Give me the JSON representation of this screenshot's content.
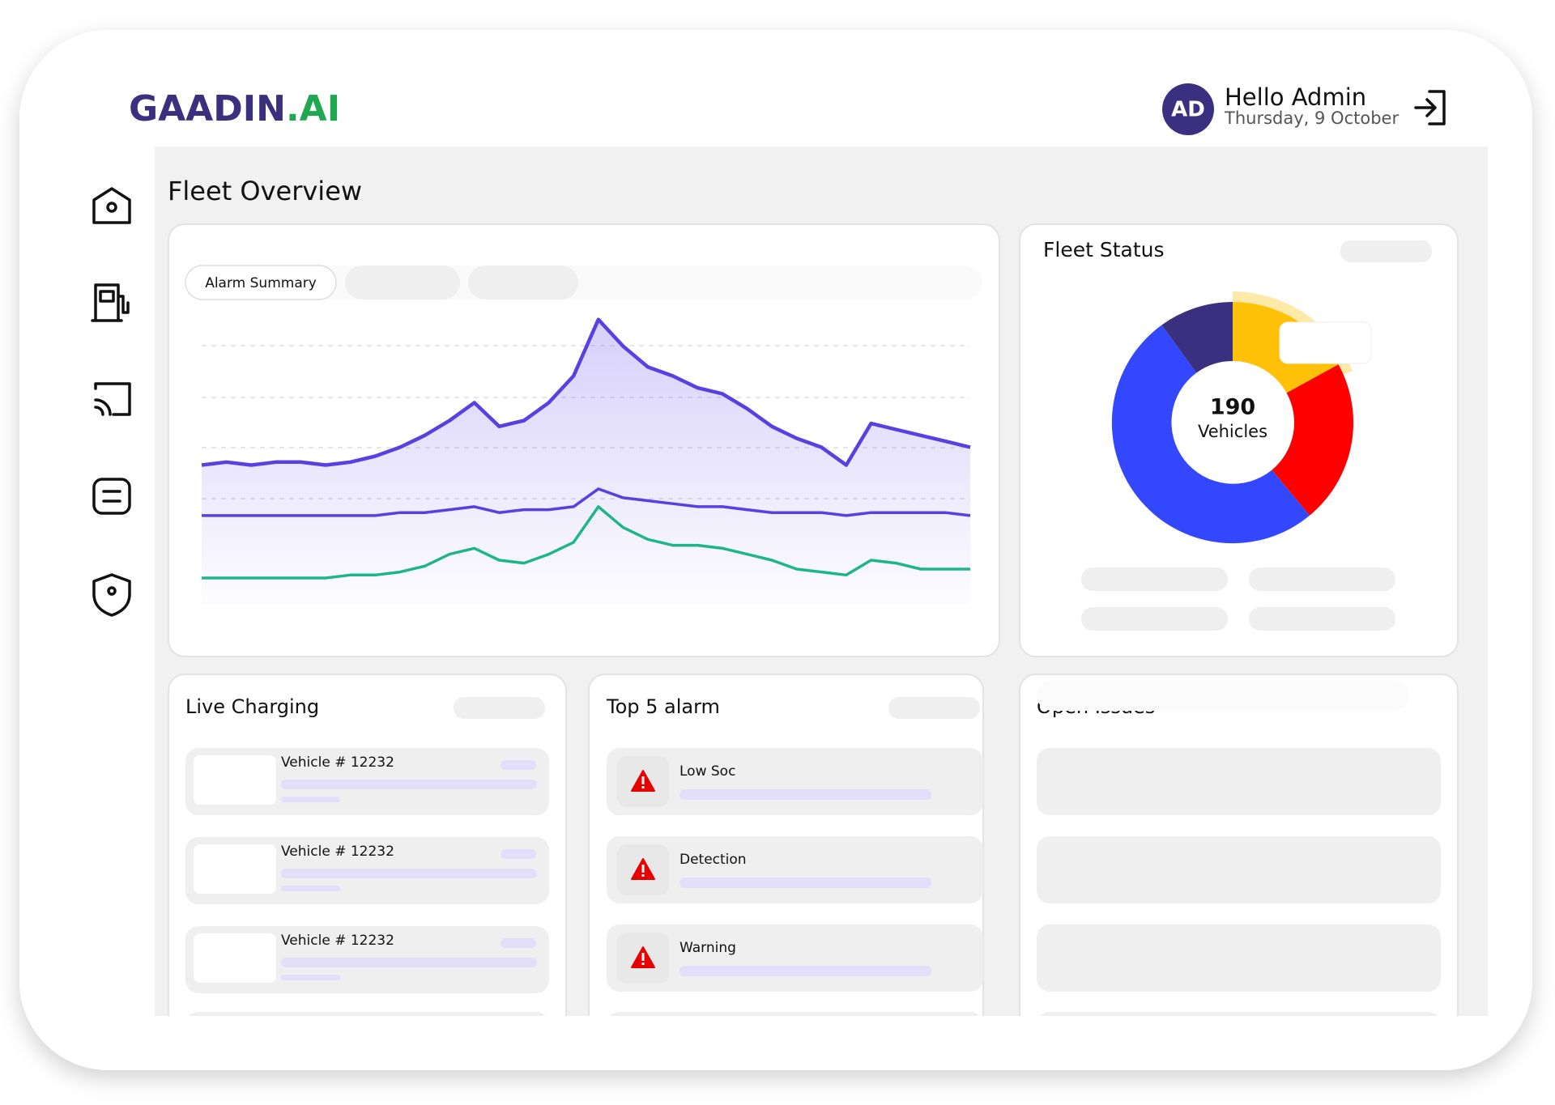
{
  "header": {
    "logo_main": "GAADIN",
    "logo_suffix": ".AI",
    "avatar": "AD",
    "greeting": "Hello Admin",
    "date": "Thursday, 9 October"
  },
  "page_title": "Fleet Overview",
  "alarm_summary": {
    "tab": "Alarm Summary"
  },
  "chart_data": [
    {
      "type": "line",
      "ylim": [
        0,
        100
      ],
      "series": [
        {
          "color": "#5b3fe0",
          "values": [
            47,
            48,
            47,
            48,
            48,
            47,
            48,
            50,
            53,
            57,
            62,
            68,
            60,
            62,
            68,
            77,
            96,
            87,
            80,
            77,
            73,
            71,
            66,
            60,
            56,
            53,
            47,
            61,
            59,
            57,
            55,
            53
          ]
        },
        {
          "color": "#5b3fe0",
          "values": [
            30,
            30,
            30,
            30,
            30,
            30,
            30,
            30,
            31,
            31,
            32,
            33,
            31,
            32,
            32,
            33,
            39,
            36,
            35,
            34,
            33,
            33,
            32,
            31,
            31,
            31,
            30,
            31,
            31,
            31,
            31,
            30
          ]
        },
        {
          "color": "#1fb58a",
          "values": [
            9,
            9,
            9,
            9,
            9,
            9,
            10,
            10,
            11,
            13,
            17,
            19,
            15,
            14,
            17,
            21,
            33,
            26,
            22,
            20,
            20,
            19,
            17,
            15,
            12,
            11,
            10,
            15,
            14,
            12,
            12,
            12
          ]
        }
      ]
    },
    {
      "type": "pie",
      "title": "Fleet Status",
      "center_value": 190,
      "center_label": "Vehicles",
      "values": [
        17,
        22,
        51,
        10
      ],
      "colors": [
        "#ffc107",
        "#ff0000",
        "#3347ff",
        "#3b2f7f"
      ]
    }
  ],
  "live_charging": {
    "title": "Live Charging",
    "items": [
      "Vehicle # 12232",
      "Vehicle # 12232",
      "Vehicle # 12232"
    ]
  },
  "top_alarms": {
    "title": "Top 5 alarm",
    "items": [
      "Low Soc",
      "Detection",
      "Warning"
    ]
  },
  "open_issues": {
    "title": "Open Issues"
  }
}
